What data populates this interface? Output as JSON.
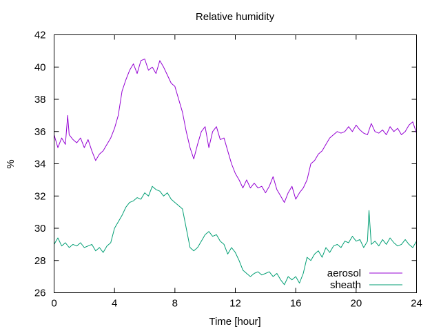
{
  "chart_data": {
    "type": "line",
    "title": "Relative humidity",
    "xlabel": "Time [hour]",
    "ylabel": "%",
    "xlim": [
      0,
      24
    ],
    "ylim": [
      26,
      42
    ],
    "xticks": [
      0,
      4,
      8,
      12,
      16,
      20,
      24
    ],
    "yticks": [
      26,
      28,
      30,
      32,
      34,
      36,
      38,
      40,
      42
    ],
    "grid": false,
    "legend_position": "bottom-right",
    "series": [
      {
        "name": "aerosol",
        "color": "#9400d3",
        "x": [
          0,
          0.25,
          0.5,
          0.75,
          0.9,
          1.0,
          1.25,
          1.5,
          1.75,
          2.0,
          2.25,
          2.5,
          2.75,
          3.0,
          3.25,
          3.5,
          3.75,
          4.0,
          4.25,
          4.5,
          4.75,
          5.0,
          5.25,
          5.5,
          5.75,
          6.0,
          6.25,
          6.5,
          6.75,
          7.0,
          7.25,
          7.5,
          7.75,
          8.0,
          8.25,
          8.5,
          8.75,
          9.0,
          9.25,
          9.5,
          9.75,
          10.0,
          10.25,
          10.5,
          10.75,
          11.0,
          11.25,
          11.5,
          11.75,
          12.0,
          12.25,
          12.5,
          12.75,
          13.0,
          13.25,
          13.5,
          13.75,
          14.0,
          14.25,
          14.5,
          14.75,
          15.0,
          15.25,
          15.5,
          15.75,
          16.0,
          16.25,
          16.5,
          16.75,
          17.0,
          17.25,
          17.5,
          17.75,
          18.0,
          18.25,
          18.5,
          18.75,
          19.0,
          19.25,
          19.5,
          19.75,
          20.0,
          20.25,
          20.5,
          20.75,
          21.0,
          21.25,
          21.5,
          21.75,
          22.0,
          22.25,
          22.5,
          22.75,
          23.0,
          23.25,
          23.5,
          23.75,
          24.0
        ],
        "y": [
          35.8,
          35.0,
          35.6,
          35.2,
          37.0,
          35.8,
          35.5,
          35.3,
          35.6,
          35.0,
          35.5,
          34.8,
          34.2,
          34.6,
          34.8,
          35.2,
          35.6,
          36.2,
          37.0,
          38.5,
          39.2,
          39.8,
          40.2,
          39.6,
          40.4,
          40.5,
          39.8,
          40.0,
          39.6,
          40.4,
          40.0,
          39.5,
          39.0,
          38.8,
          38.0,
          37.2,
          36.0,
          35.0,
          34.3,
          35.2,
          36.0,
          36.3,
          35.0,
          36.0,
          36.3,
          35.5,
          35.6,
          34.8,
          34.0,
          33.4,
          33.0,
          32.5,
          33.0,
          32.5,
          32.8,
          32.5,
          32.6,
          32.2,
          32.6,
          33.2,
          32.4,
          32.0,
          31.6,
          32.2,
          32.6,
          31.8,
          32.2,
          32.5,
          33.0,
          34.0,
          34.2,
          34.6,
          34.8,
          35.2,
          35.6,
          35.8,
          36.0,
          35.9,
          36.0,
          36.3,
          36.0,
          36.4,
          36.1,
          35.9,
          35.8,
          36.5,
          36.0,
          35.9,
          36.1,
          35.8,
          36.3,
          36.0,
          36.2,
          35.8,
          36.0,
          36.4,
          36.6,
          35.9
        ]
      },
      {
        "name": "sheath",
        "color": "#009e73",
        "x": [
          0,
          0.25,
          0.5,
          0.75,
          1.0,
          1.25,
          1.5,
          1.75,
          2.0,
          2.25,
          2.5,
          2.75,
          3.0,
          3.25,
          3.5,
          3.75,
          4.0,
          4.25,
          4.5,
          4.75,
          5.0,
          5.25,
          5.5,
          5.75,
          6.0,
          6.25,
          6.5,
          6.75,
          7.0,
          7.25,
          7.5,
          7.75,
          8.0,
          8.25,
          8.5,
          8.75,
          9.0,
          9.25,
          9.5,
          9.75,
          10.0,
          10.25,
          10.5,
          10.75,
          11.0,
          11.25,
          11.5,
          11.75,
          12.0,
          12.25,
          12.5,
          12.75,
          13.0,
          13.25,
          13.5,
          13.75,
          14.0,
          14.25,
          14.5,
          14.75,
          15.0,
          15.25,
          15.5,
          15.75,
          16.0,
          16.25,
          16.5,
          16.75,
          17.0,
          17.25,
          17.5,
          17.75,
          18.0,
          18.25,
          18.5,
          18.75,
          19.0,
          19.25,
          19.5,
          19.75,
          20.0,
          20.25,
          20.5,
          20.75,
          20.85,
          21.0,
          21.25,
          21.5,
          21.75,
          22.0,
          22.25,
          22.5,
          22.75,
          23.0,
          23.25,
          23.5,
          23.75,
          24.0
        ],
        "y": [
          29.0,
          29.4,
          28.9,
          29.1,
          28.8,
          29.0,
          28.9,
          29.1,
          28.8,
          28.9,
          29.0,
          28.6,
          28.8,
          28.5,
          28.9,
          29.1,
          30.0,
          30.4,
          30.8,
          31.3,
          31.6,
          31.7,
          31.9,
          31.8,
          32.2,
          32.0,
          32.6,
          32.4,
          32.3,
          32.0,
          32.2,
          31.8,
          31.6,
          31.4,
          31.2,
          30.0,
          28.8,
          28.6,
          28.8,
          29.2,
          29.6,
          29.8,
          29.5,
          29.6,
          29.2,
          29.0,
          28.4,
          28.8,
          28.5,
          28.0,
          27.4,
          27.2,
          27.0,
          27.2,
          27.3,
          27.1,
          27.2,
          27.3,
          27.0,
          27.2,
          26.8,
          26.5,
          27.0,
          26.8,
          27.0,
          26.6,
          27.2,
          28.2,
          28.0,
          28.4,
          28.6,
          28.2,
          28.8,
          28.5,
          28.9,
          29.0,
          28.8,
          29.2,
          29.1,
          29.5,
          29.2,
          29.3,
          28.8,
          29.2,
          31.1,
          29.0,
          29.2,
          28.9,
          29.3,
          29.0,
          29.4,
          29.1,
          28.9,
          29.0,
          29.3,
          29.0,
          28.8,
          29.2
        ]
      }
    ]
  }
}
